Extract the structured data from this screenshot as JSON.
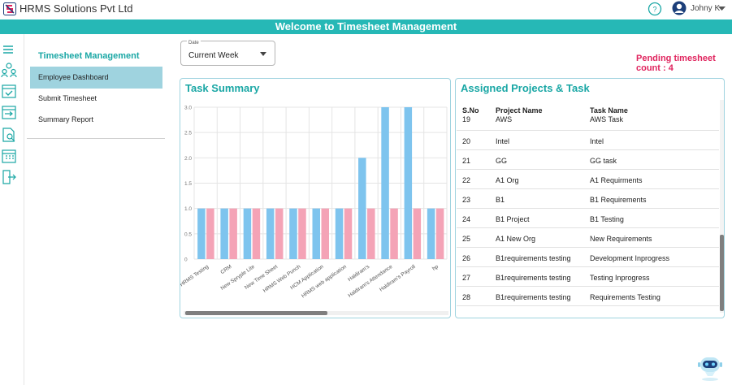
{
  "app": {
    "title": "HRMS Solutions Pvt Ltd",
    "banner": "Welcome to Timesheet Management"
  },
  "user": {
    "name": "Johny K"
  },
  "sidebar": {
    "title": "Timesheet Management",
    "items": [
      {
        "label": "Employee Dashboard",
        "active": true
      },
      {
        "label": "Submit Timesheet",
        "active": false
      },
      {
        "label": "Summary Report",
        "active": false
      }
    ],
    "rail_icons": [
      "menu-icon",
      "team-icon",
      "calendar-check-icon",
      "calendar-arrow-icon",
      "report-search-icon",
      "calendar-grid-icon",
      "logout-icon"
    ]
  },
  "filter": {
    "legend": "Date",
    "value": "Current Week"
  },
  "pending": {
    "text": "Pending timesheet count : 4"
  },
  "task_summary": {
    "title": "Task Summary"
  },
  "chart_data": {
    "type": "bar",
    "categories": [
      "HRMS Testing",
      "CRM",
      "New Spryple Lite",
      "New Time Sheet",
      "HRMS Web Punch",
      "HCM Application",
      "HRMS web application",
      "Haldiram's",
      "Haldiram's Attendance",
      "Haldiram's Payroll",
      "hp"
    ],
    "series": [
      {
        "values": [
          1,
          1,
          1,
          1,
          1,
          1,
          1,
          2,
          3,
          3,
          1
        ],
        "color": "#7ec4ee"
      },
      {
        "values": [
          1,
          1,
          1,
          1,
          1,
          1,
          1,
          1,
          1,
          1,
          1
        ],
        "color": "#f4a3b6"
      }
    ],
    "y_ticks": [
      "0",
      "0.5",
      "1.0",
      "1.5",
      "2.0",
      "2.5",
      "3.0"
    ],
    "ylim": [
      0,
      3
    ],
    "grid": true
  },
  "assigned": {
    "title": "Assigned Projects & Task",
    "headers": [
      "S.No",
      "Project Name",
      "Task Name"
    ],
    "rows": [
      [
        "19",
        "AWS",
        "AWS Task"
      ],
      [
        "20",
        "Intel",
        "Intel"
      ],
      [
        "21",
        "GG",
        "GG task"
      ],
      [
        "22",
        "A1 Org",
        "A1 Requirments"
      ],
      [
        "23",
        "B1",
        "B1 Requirements"
      ],
      [
        "24",
        "B1 Project",
        "B1 Testing"
      ],
      [
        "25",
        "A1 New Org",
        "New Requirements"
      ],
      [
        "26",
        "B1requirements testing",
        "Development Inprogress"
      ],
      [
        "27",
        "B1requirements testing",
        "Testing Inprogress"
      ],
      [
        "28",
        "B1requirements testing",
        "Requirements Testing"
      ]
    ]
  }
}
